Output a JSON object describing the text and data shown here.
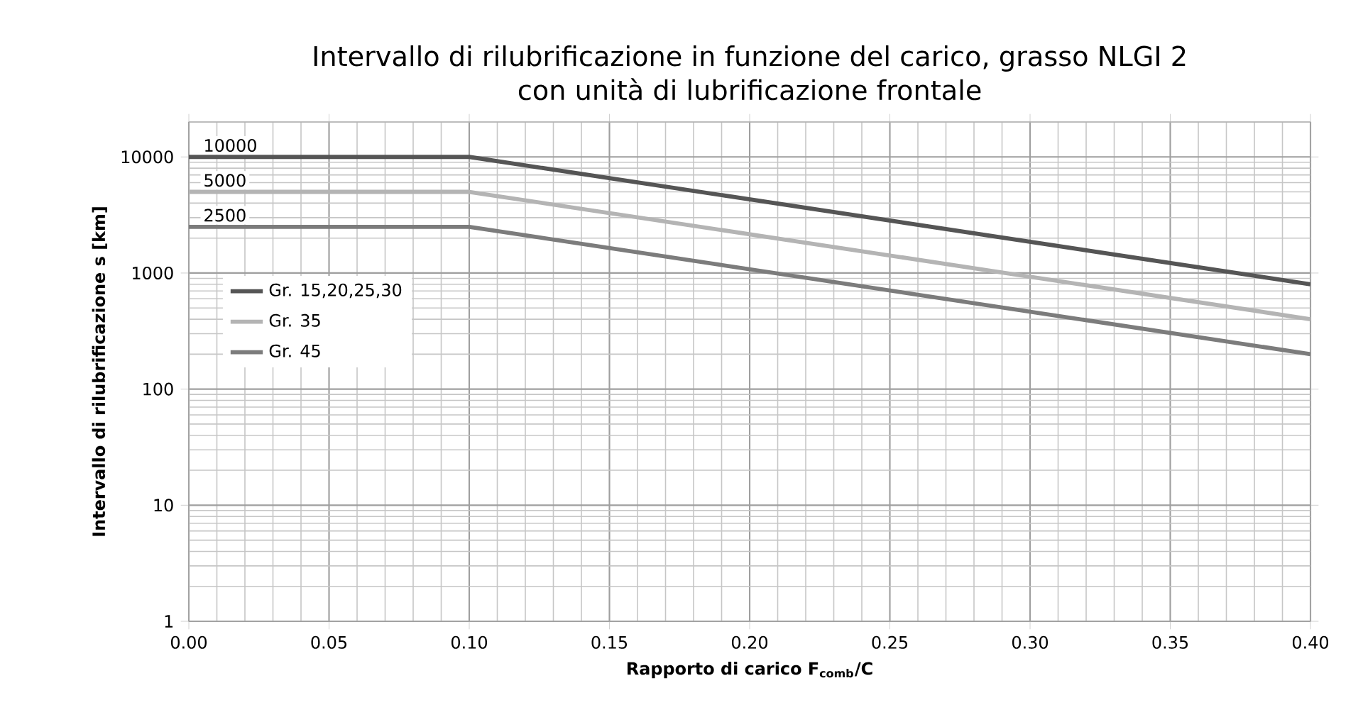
{
  "chart_data": {
    "type": "line",
    "title": "Intervallo di rilubrificazione in funzione del carico, grasso NLGI 2\ncon unità di lubrificazione frontale",
    "xlabel": "Rapporto di carico F$_{comb}$/C",
    "ylabel": "Intervallo di rilubrificazione s [km]",
    "x": [
      0.0,
      0.1,
      0.4
    ],
    "series": [
      {
        "name": "Gr. 15,20,25,30",
        "color": "#555555",
        "values": [
          10000,
          10000,
          800
        ]
      },
      {
        "name": "Gr. 35",
        "color": "#b4b4b4",
        "values": [
          5000,
          5000,
          400
        ]
      },
      {
        "name": "Gr. 45",
        "color": "#7c7c7c",
        "values": [
          2500,
          2500,
          200
        ]
      }
    ],
    "annotations": [
      {
        "text": "10000",
        "y": 10000
      },
      {
        "text": "5000",
        "y": 5000
      },
      {
        "text": "2500",
        "y": 2500
      }
    ],
    "xlim": [
      0.0,
      0.4
    ],
    "ylim": [
      1,
      20000
    ],
    "xticks": [
      {
        "value": 0.0,
        "label": "0.00"
      },
      {
        "value": 0.05,
        "label": "0.05"
      },
      {
        "value": 0.1,
        "label": "0.10"
      },
      {
        "value": 0.15,
        "label": "0.15"
      },
      {
        "value": 0.2,
        "label": "0.20"
      },
      {
        "value": 0.25,
        "label": "0.25"
      },
      {
        "value": 0.3,
        "label": "0.30"
      },
      {
        "value": 0.35,
        "label": "0.35"
      },
      {
        "value": 0.4,
        "label": "0.40"
      }
    ],
    "yticks": [
      1,
      10,
      100,
      1000,
      10000
    ],
    "log": "y",
    "grid": true,
    "legend": "left",
    "marker": "none",
    "line_style": "solid"
  }
}
